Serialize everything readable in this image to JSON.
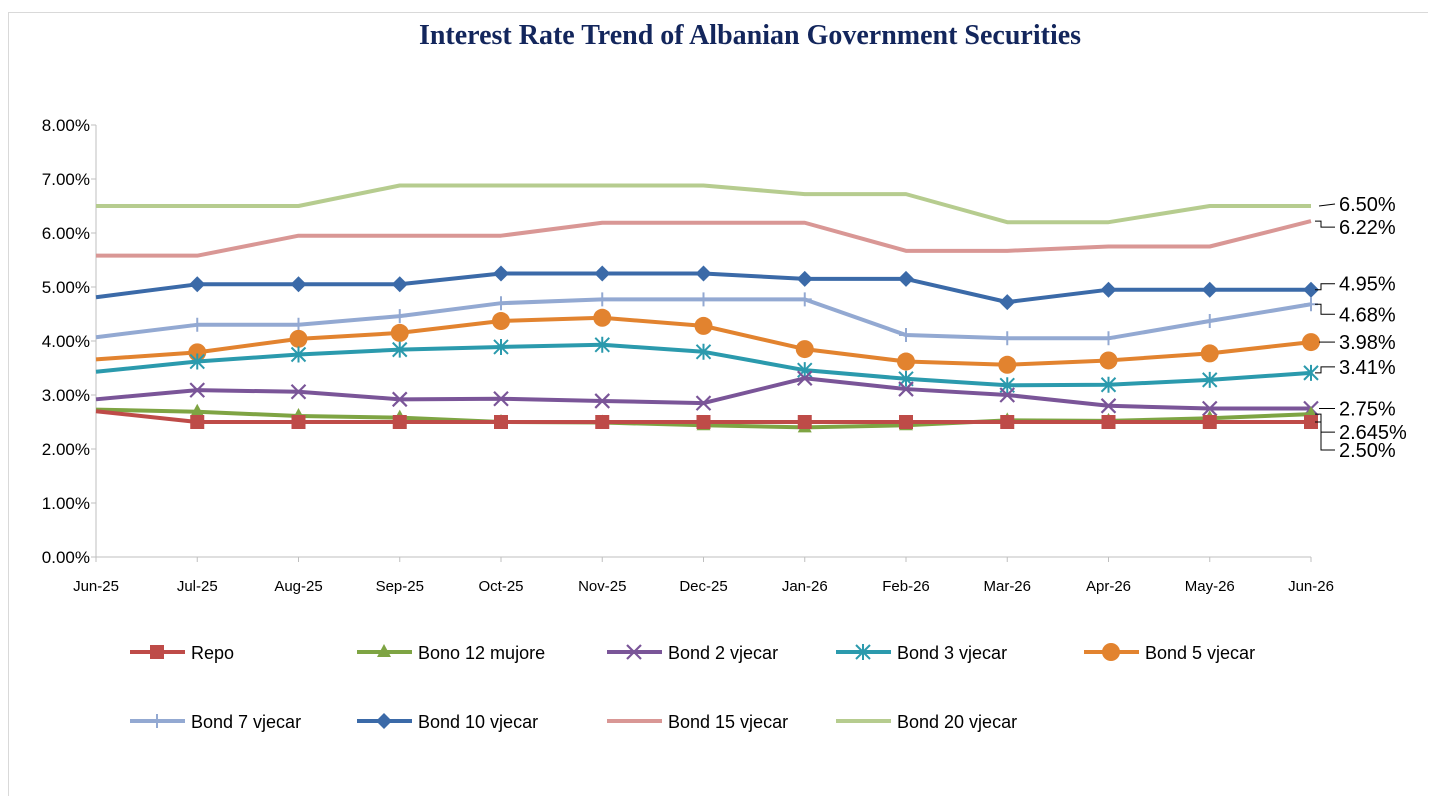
{
  "chart_data": {
    "type": "line",
    "title": "Interest Rate Trend of Albanian Government Securities",
    "xlabel": "",
    "ylabel": "",
    "ylim": [
      0,
      8
    ],
    "grid": false,
    "legend_position": "bottom",
    "y_ticks": [
      "0.00%",
      "1.00%",
      "2.00%",
      "3.00%",
      "4.00%",
      "5.00%",
      "6.00%",
      "7.00%",
      "8.00%"
    ],
    "x_ticks": [
      "Jun-25",
      "Jul-25",
      "Aug-25",
      "Sep-25",
      "Oct-25",
      "Nov-25",
      "Dec-25",
      "Jan-26",
      "Feb-26",
      "Mar-26",
      "Apr-26",
      "May-26",
      "Jun-26"
    ],
    "series": [
      {
        "name": "Repo",
        "color": "#be4b48",
        "marker": "square",
        "values": [
          2.7,
          2.5,
          2.5,
          2.5,
          2.5,
          2.5,
          2.5,
          2.5,
          2.5,
          2.5,
          2.5,
          2.5,
          2.5
        ]
      },
      {
        "name": "Bono 12 mujore",
        "color": "#7ea443",
        "marker": "triangle",
        "values": [
          2.73,
          2.69,
          2.61,
          2.58,
          2.5,
          2.49,
          2.44,
          2.4,
          2.44,
          2.53,
          2.52,
          2.57,
          2.645
        ]
      },
      {
        "name": "Bond 2 vjecar",
        "color": "#7a5598",
        "marker": "x",
        "values": [
          2.92,
          3.09,
          3.06,
          2.92,
          2.93,
          2.89,
          2.85,
          3.31,
          3.11,
          3.0,
          2.8,
          2.75,
          2.75
        ]
      },
      {
        "name": "Bond 3 vjecar",
        "color": "#2b9aad",
        "marker": "star",
        "values": [
          3.43,
          3.62,
          3.75,
          3.84,
          3.89,
          3.93,
          3.8,
          3.46,
          3.3,
          3.18,
          3.19,
          3.28,
          3.41
        ]
      },
      {
        "name": "Bond 5 vjecar",
        "color": "#e2832f",
        "marker": "circle",
        "values": [
          3.66,
          3.79,
          4.04,
          4.15,
          4.37,
          4.43,
          4.28,
          3.85,
          3.62,
          3.56,
          3.64,
          3.77,
          3.98
        ]
      },
      {
        "name": "Bond 7 vjecar",
        "color": "#93a9d2",
        "marker": "plus",
        "values": [
          4.07,
          4.3,
          4.3,
          4.46,
          4.7,
          4.77,
          4.77,
          4.77,
          4.11,
          4.05,
          4.05,
          4.37,
          4.68
        ]
      },
      {
        "name": "Bond 10 vjecar",
        "color": "#3b6aa8",
        "marker": "diamond",
        "values": [
          4.81,
          5.05,
          5.05,
          5.05,
          5.25,
          5.25,
          5.25,
          5.15,
          5.15,
          4.72,
          4.95,
          4.95,
          4.95
        ]
      },
      {
        "name": "Bond 15 vjecar",
        "color": "#d99795",
        "marker": "none",
        "values": [
          5.58,
          5.58,
          5.95,
          5.95,
          5.95,
          6.19,
          6.19,
          6.19,
          5.67,
          5.67,
          5.75,
          5.75,
          6.22
        ]
      },
      {
        "name": "Bond 20 vjecar",
        "color": "#b6cc8f",
        "marker": "none",
        "values": [
          6.5,
          6.5,
          6.5,
          6.88,
          6.88,
          6.88,
          6.88,
          6.72,
          6.72,
          6.2,
          6.2,
          6.5,
          6.5
        ]
      }
    ],
    "end_labels": [
      {
        "series": "Bond 20 vjecar",
        "text": "6.50%"
      },
      {
        "series": "Bond 15 vjecar",
        "text": "6.22%"
      },
      {
        "series": "Bond 10 vjecar",
        "text": "4.95%"
      },
      {
        "series": "Bond 7 vjecar",
        "text": "4.68%"
      },
      {
        "series": "Bond 5 vjecar",
        "text": "3.98%"
      },
      {
        "series": "Bond 3 vjecar",
        "text": "3.41%"
      },
      {
        "series": "Bond 2 vjecar",
        "text": "2.75%"
      },
      {
        "series": "Bono 12 mujore",
        "text": "2.645%"
      },
      {
        "series": "Repo",
        "text": "2.50%"
      }
    ]
  }
}
